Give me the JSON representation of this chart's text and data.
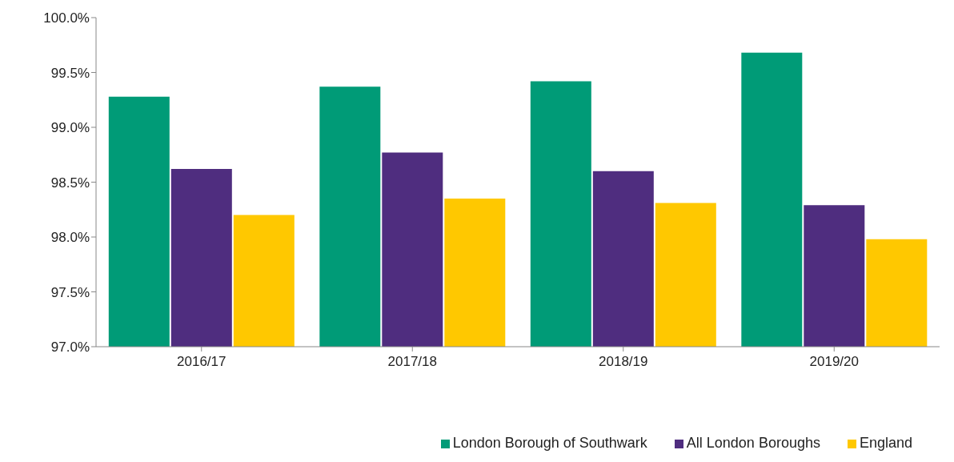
{
  "chart_data": {
    "type": "bar",
    "categories": [
      "2016/17",
      "2017/18",
      "2018/19",
      "2019/20"
    ],
    "series": [
      {
        "name": "London Borough of Southwark",
        "color": "#009b77",
        "values": [
          99.28,
          99.37,
          99.42,
          99.68
        ]
      },
      {
        "name": "All London Boroughs",
        "color": "#4f2d7f",
        "values": [
          98.62,
          98.77,
          98.6,
          98.29
        ]
      },
      {
        "name": "England",
        "color": "#ffc800",
        "values": [
          98.2,
          98.35,
          98.31,
          97.98
        ]
      }
    ],
    "ylim": [
      97,
      100
    ],
    "yticks": [
      {
        "value": 97,
        "label": "97.0%"
      },
      {
        "value": 97.5,
        "label": "97.5%"
      },
      {
        "value": 98,
        "label": "98.0%"
      },
      {
        "value": 98.5,
        "label": "98.5%"
      },
      {
        "value": 99,
        "label": "99.0%"
      },
      {
        "value": 99.5,
        "label": "99.5%"
      },
      {
        "value": 100,
        "label": "100.0%"
      }
    ],
    "grid": false,
    "legend": "bottom right"
  }
}
